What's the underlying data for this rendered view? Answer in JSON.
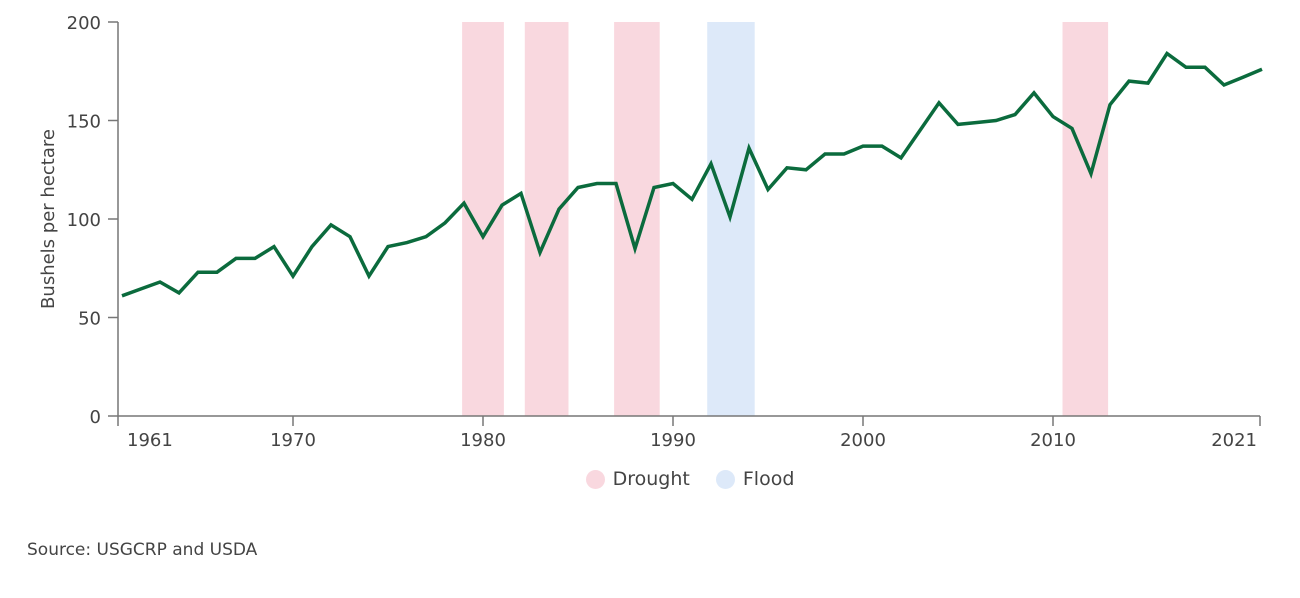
{
  "chart_data": {
    "type": "line",
    "ylabel": "Bushels per hectare",
    "ylim": [
      0,
      200
    ],
    "yticks": [
      0,
      50,
      100,
      150,
      200
    ],
    "xlim": [
      1961,
      2021
    ],
    "xticks": [
      1961,
      1970,
      1980,
      1990,
      2000,
      2010,
      2021
    ],
    "x": [
      1961,
      1962,
      1963,
      1964,
      1965,
      1966,
      1967,
      1968,
      1969,
      1970,
      1971,
      1972,
      1973,
      1974,
      1975,
      1976,
      1977,
      1978,
      1979,
      1980,
      1981,
      1982,
      1983,
      1984,
      1985,
      1986,
      1987,
      1988,
      1989,
      1990,
      1991,
      1992,
      1993,
      1994,
      1995,
      1996,
      1997,
      1998,
      1999,
      2000,
      2001,
      2002,
      2003,
      2004,
      2005,
      2006,
      2007,
      2008,
      2009,
      2010,
      2011,
      2012,
      2013,
      2014,
      2015,
      2016,
      2017,
      2018,
      2019,
      2020,
      2021
    ],
    "series": [
      {
        "values": [
          61,
          64.5,
          68,
          62.5,
          73,
          73,
          80,
          80,
          86,
          71,
          86,
          97,
          91,
          71,
          86,
          88,
          91,
          98,
          108,
          91,
          107,
          113,
          83,
          105,
          116,
          118,
          118,
          85,
          116,
          118,
          110,
          128,
          101,
          136,
          115,
          126,
          125,
          133,
          133,
          137,
          137,
          131,
          145,
          159,
          148,
          149,
          150,
          153,
          164,
          152,
          146,
          123,
          158,
          170,
          169,
          184,
          177,
          177,
          168,
          172,
          176
        ],
        "color": "#0b6b3d"
      }
    ],
    "bands": [
      {
        "type": "Drought",
        "from": 1978.9,
        "to": 1981.1
      },
      {
        "type": "Drought",
        "from": 1982.2,
        "to": 1984.5
      },
      {
        "type": "Drought",
        "from": 1986.9,
        "to": 1989.3
      },
      {
        "type": "Flood",
        "from": 1991.8,
        "to": 1994.3
      },
      {
        "type": "Drought",
        "from": 2010.5,
        "to": 2012.9
      }
    ],
    "legend": [
      {
        "label": "Drought",
        "color": "#f9d8df"
      },
      {
        "label": "Flood",
        "color": "#dde9f9"
      }
    ],
    "legend_position": "bottom",
    "grid": false
  },
  "source": "Source: USGCRP and USDA"
}
